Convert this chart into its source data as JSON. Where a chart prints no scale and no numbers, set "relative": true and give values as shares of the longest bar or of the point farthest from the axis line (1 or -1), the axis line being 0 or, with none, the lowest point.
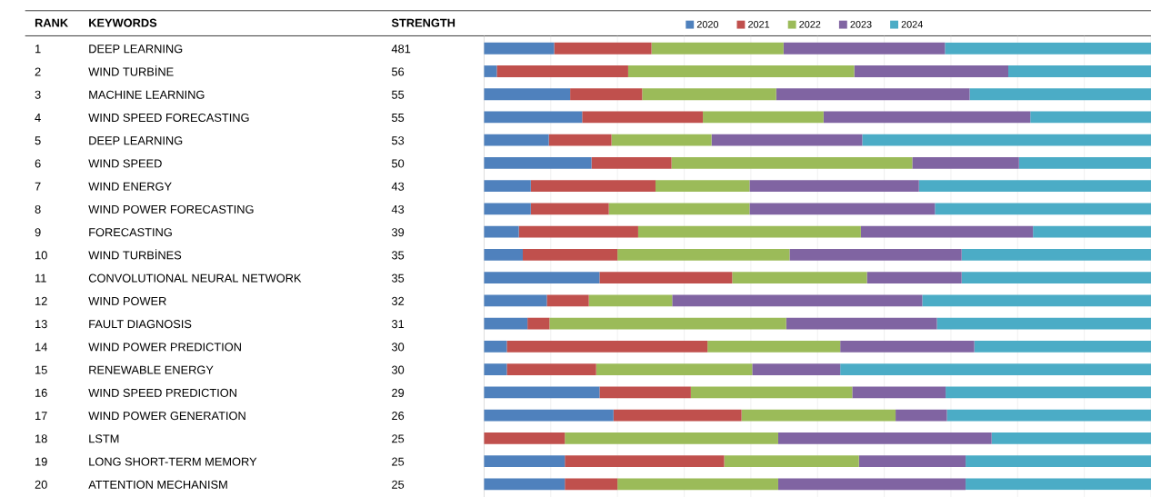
{
  "chart_data": {
    "type": "bar",
    "orientation": "horizontal",
    "stacked": true,
    "relative": true,
    "grid": "x",
    "legend": "top",
    "ylabel": "KEYWORDS",
    "categories": [
      "DEEP LEARNING",
      "WIND TURBİNE",
      "MACHINE LEARNING",
      "WIND SPEED FORECASTING",
      "DEEP LEARNING",
      "WIND SPEED",
      "WIND ENERGY",
      "WIND POWER FORECASTING",
      "FORECASTING",
      "WIND TURBİNES",
      "CONVOLUTIONAL NEURAL NETWORK",
      "WIND POWER",
      "FAULT DIAGNOSIS",
      "WIND POWER PREDICTION",
      "RENEWABLE ENERGY",
      "WIND SPEED PREDICTION",
      "WIND POWER GENERATION",
      "LSTM",
      "LONG SHORT-TERM MEMORY",
      "ATTENTION MECHANISM"
    ],
    "series": [
      {
        "name": "2020",
        "color": "#4f81bd",
        "values": [
          0.105,
          0.019,
          0.129,
          0.147,
          0.097,
          0.161,
          0.07,
          0.07,
          0.052,
          0.058,
          0.173,
          0.094,
          0.065,
          0.034,
          0.034,
          0.173,
          0.194,
          0,
          0.121,
          0.121
        ]
      },
      {
        "name": "2021",
        "color": "#c0504d",
        "values": [
          0.146,
          0.197,
          0.108,
          0.181,
          0.094,
          0.12,
          0.187,
          0.117,
          0.179,
          0.142,
          0.199,
          0.063,
          0.033,
          0.301,
          0.134,
          0.137,
          0.192,
          0.121,
          0.239,
          0.079
        ]
      },
      {
        "name": "2022",
        "color": "#9bbb59",
        "values": [
          0.198,
          0.339,
          0.201,
          0.181,
          0.15,
          0.361,
          0.141,
          0.211,
          0.334,
          0.258,
          0.202,
          0.125,
          0.355,
          0.199,
          0.234,
          0.242,
          0.231,
          0.32,
          0.202,
          0.241
        ]
      },
      {
        "name": "2023",
        "color": "#8064a2",
        "values": [
          0.242,
          0.231,
          0.29,
          0.31,
          0.226,
          0.16,
          0.254,
          0.278,
          0.258,
          0.258,
          0.142,
          0.375,
          0.226,
          0.201,
          0.132,
          0.14,
          0.077,
          0.32,
          0.16,
          0.281
        ]
      },
      {
        "name": "2024",
        "color": "#4bacc6",
        "values": [
          0.309,
          0.214,
          0.272,
          0.181,
          0.433,
          0.198,
          0.348,
          0.324,
          0.177,
          0.284,
          0.284,
          0.343,
          0.321,
          0.265,
          0.466,
          0.308,
          0.306,
          0.239,
          0.278,
          0.278
        ]
      }
    ],
    "annotations": [
      "RANK",
      "STRENGTH",
      "1",
      "2",
      "3",
      "4",
      "5",
      "6",
      "7",
      "8",
      "9",
      "10",
      "11",
      "12",
      "13",
      "14",
      "15",
      "16",
      "17",
      "18",
      "19",
      "20",
      "481",
      "56",
      "55",
      "55",
      "53",
      "50",
      "43",
      "43",
      "39",
      "35",
      "35",
      "32",
      "31",
      "30",
      "30",
      "29",
      "26",
      "25",
      "25",
      "25"
    ]
  }
}
